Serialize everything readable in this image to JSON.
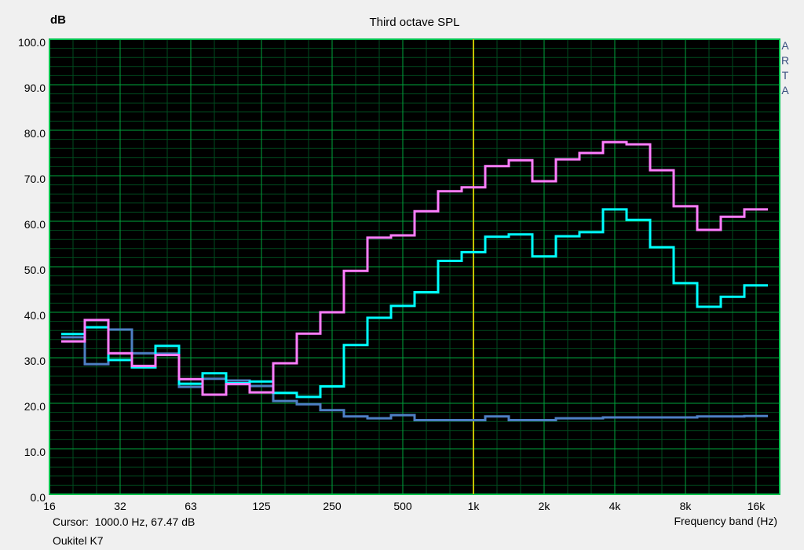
{
  "window": {
    "background": "#f0f0f0"
  },
  "chart_data": {
    "type": "line",
    "subtype": "third-octave-stepped-spl",
    "title": "Third octave SPL",
    "ylabel": "dB",
    "xlabel": "Frequency band (Hz)",
    "ylim": [
      0.0,
      100.0
    ],
    "grid_on": true,
    "legend": "none",
    "y_major_ticks": [
      "100.0",
      "90.0",
      "80.0",
      "70.0",
      "60.0",
      "50.0",
      "40.0",
      "30.0",
      "20.0",
      "10.0",
      "0.0"
    ],
    "x_major_ticks": [
      "16",
      "32",
      "63",
      "125",
      "250",
      "500",
      "1k",
      "2k",
      "4k",
      "8k",
      "16k"
    ],
    "categories": [
      "16",
      "20",
      "25",
      "31.5",
      "40",
      "50",
      "63",
      "80",
      "100",
      "125",
      "160",
      "200",
      "250",
      "315",
      "400",
      "500",
      "630",
      "800",
      "1k",
      "1.25k",
      "1.6k",
      "2k",
      "2.5k",
      "3.15k",
      "4k",
      "5k",
      "6.3k",
      "8k",
      "10k",
      "12.5k",
      "16k"
    ],
    "series": [
      {
        "name": "noise-floor-blue",
        "color": "#4e7fc4",
        "values": [
          null,
          34.5,
          28.6,
          36.2,
          31.0,
          30.9,
          23.6,
          25.4,
          25.0,
          23.8,
          20.5,
          19.8,
          18.5,
          17.1,
          16.7,
          17.4,
          16.3,
          16.3,
          16.3,
          17.1,
          16.3,
          16.3,
          16.7,
          16.7,
          16.9,
          16.9,
          16.9,
          16.9,
          17.1,
          17.1,
          17.2
        ]
      },
      {
        "name": "measurement-cyan",
        "color": "#00ffff",
        "values": [
          null,
          35.2,
          36.7,
          29.5,
          27.9,
          32.6,
          24.3,
          26.6,
          24.4,
          24.8,
          22.3,
          21.4,
          23.7,
          32.8,
          38.8,
          41.4,
          44.4,
          51.3,
          53.2,
          56.6,
          57.1,
          52.3,
          56.7,
          57.6,
          62.6,
          60.3,
          54.3,
          46.4,
          41.2,
          43.4,
          45.9
        ]
      },
      {
        "name": "overlay-magenta",
        "color": "#ff7dff",
        "values": [
          null,
          33.6,
          38.3,
          31.0,
          28.2,
          30.6,
          25.3,
          21.9,
          24.2,
          22.4,
          28.8,
          35.3,
          40.0,
          49.1,
          56.4,
          56.9,
          62.2,
          66.6,
          67.47,
          72.1,
          73.4,
          68.8,
          73.6,
          75.0,
          77.4,
          76.9,
          71.2,
          63.3,
          58.1,
          61.0,
          62.6
        ]
      }
    ],
    "grid": {
      "background": "#000000",
      "major_color": "#00a33c",
      "minor_color": "#004a1e",
      "frame_color": "#00c24e",
      "minor_step_db": 2,
      "major_step_db": 10
    },
    "cursor": {
      "band": "1k",
      "line_color": "#c2c200"
    }
  },
  "branding": {
    "vertical_text": "A\nR\nT\nA",
    "color": "#3a5080"
  },
  "footer": {
    "cursor_text": "Cursor:  1000.0 Hz, 67.47 dB",
    "device_name": "Oukitel K7"
  }
}
